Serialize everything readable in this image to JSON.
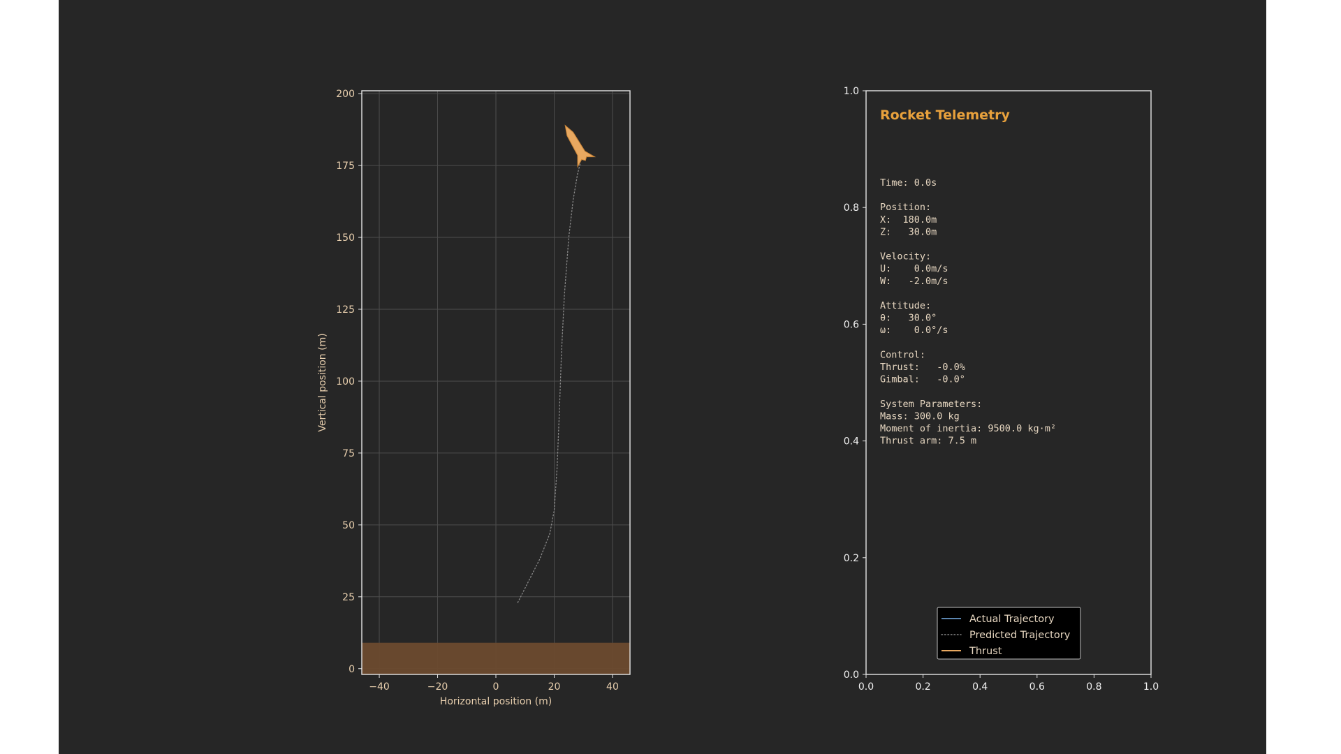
{
  "colors": {
    "background": "#262626",
    "axes_face": "#262626",
    "axes_edge": "#e6e6e6",
    "tick_text": "#e8cfae",
    "tick_text_right": "#f0f0f0",
    "grid": "#4d4d4d",
    "ground": "#6b4a2e",
    "rocket": "#e8a860",
    "accent": "#e8a13c",
    "telemetry_text": "#e6d6c0",
    "actual_line": "#5b86b0",
    "predicted_line": "#8a8a8a",
    "thrust_line": "#e8a860",
    "legend_bg": "#000000"
  },
  "chart_data": [
    {
      "type": "line",
      "xlabel": "Horizontal position (m)",
      "ylabel": "Vertical position (m)",
      "xlim": [
        -46,
        46
      ],
      "ylim": [
        -2,
        201
      ],
      "xticks": [
        -40,
        -20,
        0,
        20,
        40
      ],
      "xtick_labels": [
        "−40",
        "−20",
        "0",
        "20",
        "40"
      ],
      "yticks": [
        0,
        25,
        50,
        75,
        100,
        125,
        150,
        175,
        200
      ],
      "ytick_labels": [
        "0",
        "25",
        "50",
        "75",
        "100",
        "125",
        "150",
        "175",
        "200"
      ],
      "grid": true,
      "ground": {
        "y_from": 0,
        "y_to": 9
      },
      "series": [
        {
          "name": "Predicted Trajectory",
          "style": "dotted",
          "x": [
            7.5,
            11,
            15,
            18.5,
            20,
            21,
            21.8,
            22.5,
            23.5,
            25,
            26.5,
            28,
            29
          ],
          "y": [
            23,
            30,
            38,
            47,
            55,
            70,
            90,
            110,
            130,
            150,
            163,
            172,
            176
          ]
        }
      ],
      "rocket": {
        "x": 30,
        "y": 178,
        "tilt_deg": 30
      }
    },
    {
      "type": "line",
      "title": "Rocket Telemetry",
      "xlim": [
        0,
        1
      ],
      "ylim": [
        0,
        1
      ],
      "xticks": [
        0,
        0.2,
        0.4,
        0.6,
        0.8,
        1.0
      ],
      "xtick_labels": [
        "0.0",
        "0.2",
        "0.4",
        "0.6",
        "0.8",
        "1.0"
      ],
      "yticks": [
        0,
        0.2,
        0.4,
        0.6,
        0.8,
        1.0
      ],
      "ytick_labels": [
        "0.0",
        "0.2",
        "0.4",
        "0.6",
        "0.8",
        "1.0"
      ],
      "grid": false,
      "legend_placement": "lower-center",
      "legend": [
        {
          "label": "Actual Trajectory",
          "style": "solid",
          "color": "#5b86b0"
        },
        {
          "label": "Predicted Trajectory",
          "style": "dotted",
          "color": "#8a8a8a"
        },
        {
          "label": "Thrust",
          "style": "solid",
          "color": "#e8a860"
        }
      ]
    }
  ],
  "telemetry": {
    "title": "Rocket Telemetry",
    "lines": [
      "Time: 0.0s",
      "",
      "Position:",
      "X:  180.0m",
      "Z:   30.0m",
      "",
      "Velocity:",
      "U:    0.0m/s",
      "W:   -2.0m/s",
      "",
      "Attitude:",
      "θ:   30.0°",
      "ω:    0.0°/s",
      "",
      "Control:",
      "Thrust:   -0.0%",
      "Gimbal:   -0.0°",
      "",
      "System Parameters:",
      "Mass: 300.0 kg",
      "Moment of inertia: 9500.0 kg·m²",
      "Thrust arm: 7.5 m"
    ]
  }
}
